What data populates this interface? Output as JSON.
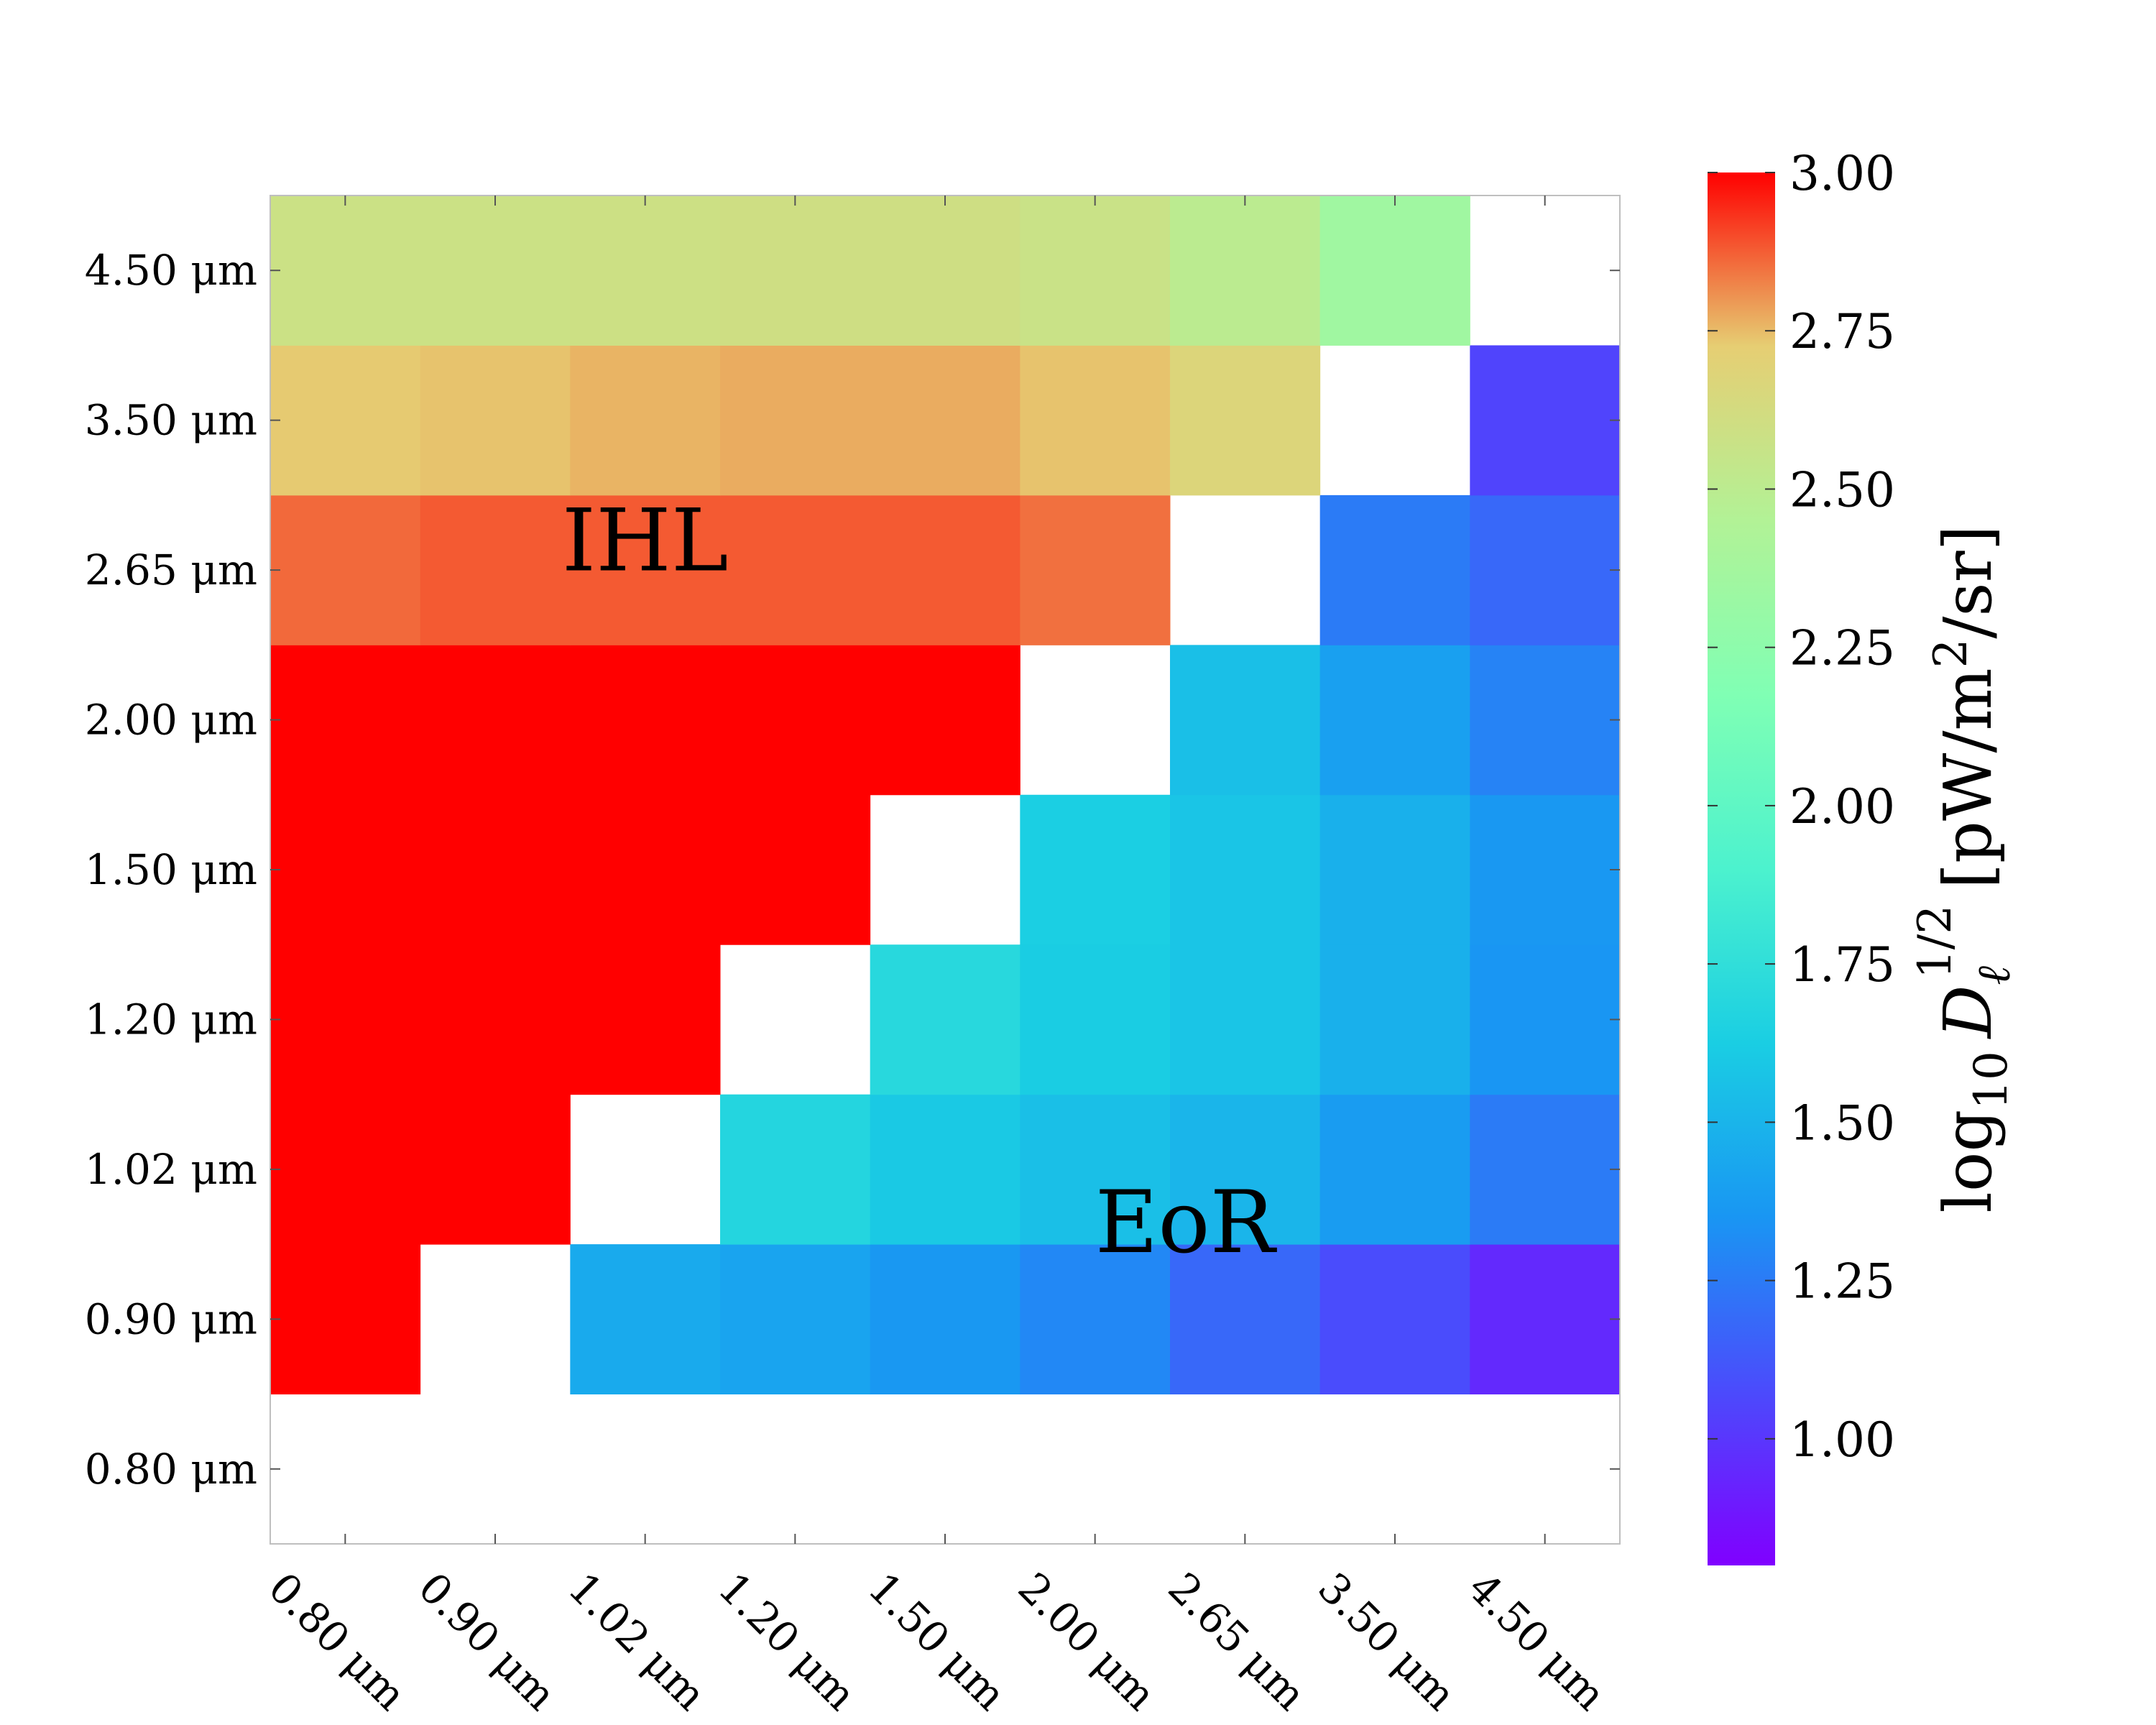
{
  "chart_data": {
    "type": "heatmap",
    "x_categories": [
      "0.80 μm",
      "0.90 μm",
      "1.02 μm",
      "1.20 μm",
      "1.50 μm",
      "2.00 μm",
      "2.65 μm",
      "3.50 μm",
      "4.50 μm"
    ],
    "y_categories": [
      "0.80 μm",
      "0.90 μm",
      "1.02 μm",
      "1.20 μm",
      "1.50 μm",
      "2.00 μm",
      "2.65 μm",
      "3.50 μm",
      "4.50 μm"
    ],
    "values": [
      [
        null,
        null,
        null,
        null,
        null,
        null,
        null,
        null,
        null
      ],
      [
        3.0,
        null,
        1.45,
        1.42,
        1.36,
        1.3,
        1.18,
        1.08,
        0.95
      ],
      [
        3.0,
        3.0,
        null,
        1.68,
        1.6,
        1.55,
        1.5,
        1.38,
        1.25
      ],
      [
        3.0,
        3.0,
        3.0,
        null,
        1.7,
        1.62,
        1.58,
        1.48,
        1.35
      ],
      [
        3.0,
        3.0,
        3.0,
        3.0,
        null,
        1.63,
        1.58,
        1.48,
        1.36
      ],
      [
        3.0,
        3.0,
        3.0,
        3.0,
        3.0,
        null,
        1.55,
        1.4,
        1.28
      ],
      [
        2.86,
        2.88,
        2.88,
        2.88,
        2.88,
        2.85,
        null,
        1.25,
        1.18
      ],
      [
        2.73,
        2.74,
        2.76,
        2.77,
        2.77,
        2.74,
        2.67,
        null,
        1.05
      ],
      [
        2.58,
        2.58,
        2.59,
        2.6,
        2.6,
        2.57,
        2.5,
        2.35,
        null
      ]
    ],
    "colorbar": {
      "label_main": "log",
      "label_sub": "10",
      "label_var": "D",
      "label_var_sub": "ℓ",
      "label_var_sup": "1/2",
      "label_units": "[pW/m",
      "label_units_sup": "2",
      "label_units_end": "/sr]",
      "min": 0.8,
      "max": 3.0,
      "ticks": [
        "1.00",
        "1.25",
        "1.50",
        "1.75",
        "2.00",
        "2.25",
        "2.50",
        "2.75",
        "3.00"
      ],
      "colormap": "rainbow"
    },
    "annotations": [
      {
        "text": "IHL",
        "x_index": 2.5,
        "y_index": 6.7
      },
      {
        "text": "EoR",
        "x_index": 6.1,
        "y_index": 2.15
      }
    ],
    "grid": false
  }
}
